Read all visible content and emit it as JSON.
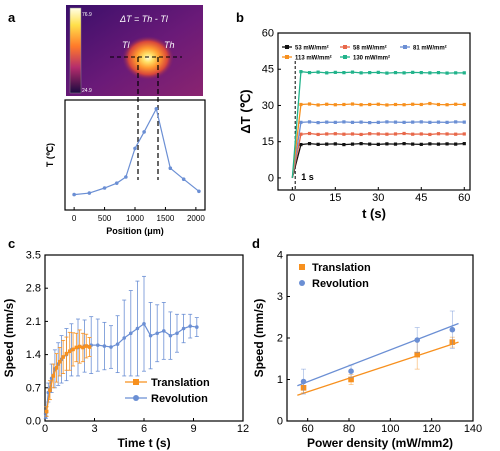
{
  "colors": {
    "black": "#111111",
    "red": "#e8684a",
    "blue": "#6b8fd4",
    "orange": "#f7901e",
    "green": "#21b38b"
  },
  "panel_labels": [
    "a",
    "b",
    "c",
    "d"
  ],
  "thermal_image": {
    "title": "ΔT = Th - Tl",
    "tl_label": "Tl",
    "th_label": "Th",
    "scale_max": "76.9",
    "scale_min": "24.9"
  },
  "chart_data": [
    {
      "panel": "a",
      "type": "line",
      "xlabel": "Position (μm)",
      "ylabel": "T (℃)",
      "xlim": [
        -150,
        2150
      ],
      "ylim": [
        30,
        80
      ],
      "xticks": [
        0,
        500,
        1000,
        1500,
        2000
      ],
      "yticks": [],
      "x": [
        0,
        250,
        500,
        700,
        850,
        1000,
        1150,
        1350,
        1580,
        1800,
        2050
      ],
      "values": [
        37,
        37.7,
        40,
        42.2,
        45,
        58,
        65.5,
        76,
        49,
        44,
        38.5
      ],
      "color": "#6b8fd4"
    },
    {
      "panel": "b",
      "type": "line",
      "xlabel": "t (s)",
      "ylabel": "ΔT (℃)",
      "xlim": [
        -5,
        62
      ],
      "ylim": [
        -5,
        60
      ],
      "xticks": [
        0,
        15,
        30,
        45,
        60
      ],
      "yticks": [
        0,
        15,
        30,
        45,
        60
      ],
      "annotation": "1 s",
      "x": [
        0,
        3,
        6,
        9,
        12,
        15,
        18,
        21,
        24,
        27,
        30,
        33,
        36,
        39,
        42,
        45,
        48,
        51,
        54,
        57,
        60
      ],
      "series": [
        {
          "name": "53 mW/mm²",
          "color": "#111111",
          "values": [
            0,
            13.8,
            14.2,
            13.9,
            14.0,
            14.1,
            13.8,
            14.0,
            14.2,
            14.0,
            13.9,
            14.1,
            14.0,
            14.2,
            14.0,
            13.9,
            14.1,
            14.0,
            14.1,
            14.0,
            14.2
          ]
        },
        {
          "name": "58 mW/mm²",
          "color": "#e8684a",
          "values": [
            0,
            18.1,
            18.4,
            18.0,
            18.2,
            18.3,
            18.1,
            18.2,
            18.0,
            18.3,
            18.2,
            18.1,
            18.2,
            18.4,
            18.1,
            18.2,
            18.0,
            18.3,
            18.2,
            18.1,
            18.2
          ]
        },
        {
          "name": "81 mW/mm²",
          "color": "#6b8fd4",
          "values": [
            0,
            23.0,
            23.2,
            22.9,
            23.1,
            23.0,
            23.2,
            23.0,
            23.1,
            22.9,
            23.0,
            23.2,
            23.1,
            23.0,
            23.1,
            23.2,
            23.0,
            23.1,
            23.0,
            23.2,
            23.1
          ]
        },
        {
          "name": "113 mW/mm²",
          "color": "#f7901e",
          "values": [
            0,
            30.4,
            30.6,
            30.2,
            30.5,
            30.3,
            30.4,
            30.6,
            30.3,
            30.4,
            30.5,
            30.2,
            30.4,
            30.3,
            30.5,
            30.4,
            30.8,
            30.4,
            30.3,
            30.5,
            30.4
          ]
        },
        {
          "name": "130 mW/mm²",
          "color": "#21b38b",
          "values": [
            0,
            44.0,
            43.6,
            43.8,
            43.5,
            43.7,
            43.6,
            43.8,
            43.5,
            43.6,
            43.7,
            43.4,
            43.6,
            43.5,
            43.7,
            43.6,
            43.5,
            43.6,
            43.4,
            43.5,
            43.5
          ]
        }
      ]
    },
    {
      "panel": "c",
      "type": "line",
      "xlabel": "Time t (s)",
      "ylabel": "Speed (mm/s)",
      "xlim": [
        0,
        12
      ],
      "ylim": [
        0,
        3.5
      ],
      "xticks": [
        0,
        3,
        6,
        9,
        12
      ],
      "yticks": [
        0.0,
        0.7,
        1.4,
        2.1,
        2.8,
        3.5
      ],
      "series": [
        {
          "name": "Translation",
          "color": "#f7901e",
          "x": [
            0.1,
            0.3,
            0.5,
            0.7,
            0.9,
            1.1,
            1.3,
            1.5,
            1.7,
            1.9,
            2.1,
            2.3,
            2.5,
            2.7
          ],
          "values": [
            0.2,
            0.65,
            0.95,
            1.12,
            1.25,
            1.35,
            1.42,
            1.47,
            1.51,
            1.55,
            1.57,
            1.55,
            1.58,
            1.56
          ],
          "errors": [
            0.1,
            0.2,
            0.25,
            0.3,
            0.3,
            0.35,
            0.35,
            0.4,
            0.35,
            0.3,
            0.35,
            0.3,
            0.25,
            0.2
          ]
        },
        {
          "name": "Revolution",
          "color": "#6b8fd4",
          "x": [
            0.05,
            0.2,
            0.4,
            0.6,
            0.8,
            1.0,
            1.3,
            1.6,
            2.0,
            2.4,
            2.8,
            3.2,
            3.6,
            4.0,
            4.4,
            4.8,
            5.2,
            5.6,
            6.0,
            6.4,
            6.8,
            7.2,
            7.6,
            8.0,
            8.4,
            8.8,
            9.2
          ],
          "values": [
            0.1,
            0.6,
            0.9,
            1.1,
            1.2,
            1.3,
            1.4,
            1.5,
            1.55,
            1.58,
            1.6,
            1.6,
            1.58,
            1.56,
            1.62,
            1.75,
            1.85,
            1.95,
            2.05,
            1.8,
            1.85,
            1.9,
            1.8,
            1.85,
            1.95,
            2.0,
            1.98
          ],
          "errors": [
            0.05,
            0.2,
            0.3,
            0.4,
            0.45,
            0.5,
            0.55,
            0.55,
            0.6,
            0.55,
            0.6,
            0.55,
            0.5,
            0.45,
            0.6,
            0.8,
            0.9,
            1.0,
            1.0,
            0.7,
            0.6,
            0.6,
            0.5,
            0.4,
            0.3,
            0.25,
            0.2
          ]
        }
      ]
    },
    {
      "panel": "d",
      "type": "scatter",
      "xlabel": "Power density (mW/mm2)",
      "ylabel": "Speed (mm/s)",
      "xlim": [
        50,
        140
      ],
      "ylim": [
        0,
        4
      ],
      "xticks": [
        60,
        80,
        100,
        120,
        140
      ],
      "yticks": [
        0,
        1,
        2,
        3,
        4
      ],
      "series": [
        {
          "name": "Translation",
          "color": "#f7901e",
          "marker": "square",
          "x": [
            58,
            81,
            113,
            130
          ],
          "values": [
            0.8,
            1.0,
            1.6,
            1.9
          ],
          "errors": [
            0.12,
            0.12,
            0.35,
            0.12
          ],
          "fit": [
            [
              55,
              0.62
            ],
            [
              133,
              1.9
            ]
          ]
        },
        {
          "name": "Revolution",
          "color": "#6b8fd4",
          "marker": "circle",
          "x": [
            58,
            81,
            113,
            130
          ],
          "values": [
            0.95,
            1.2,
            1.95,
            2.2
          ],
          "errors": [
            0.3,
            0.15,
            0.3,
            0.45
          ],
          "fit": [
            [
              55,
              0.85
            ],
            [
              133,
              2.35
            ]
          ]
        }
      ]
    }
  ]
}
